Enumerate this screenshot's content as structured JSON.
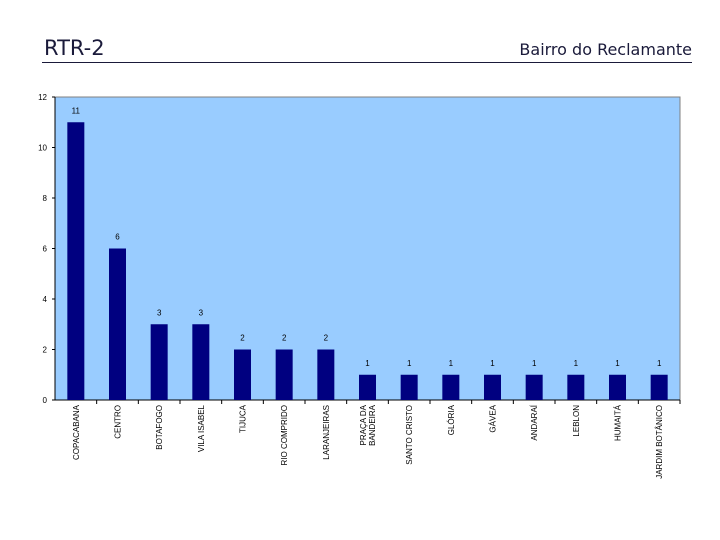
{
  "header": {
    "title": "RTR-2",
    "subtitle": "Bairro do Reclamante"
  },
  "chart_data": {
    "type": "bar",
    "categories": [
      "COPACABANA",
      "CENTRO",
      "BOTAFOGO",
      "VILA ISABEL",
      "TIJUCA",
      "RIO COMPRIDO",
      "LARANJEIRAS",
      "PRAÇA DA|BANDEIRA",
      "SANTO CRISTO",
      "GLÓRIA",
      "GÁVEA",
      "ANDARAÍ",
      "LEBLON",
      "HUMAITÁ",
      "JARDIM BOTÂNICO"
    ],
    "values": [
      11,
      6,
      3,
      3,
      2,
      2,
      2,
      1,
      1,
      1,
      1,
      1,
      1,
      1,
      1
    ],
    "yticks": [
      0,
      2,
      4,
      6,
      8,
      10,
      12
    ],
    "ylim": [
      0,
      12
    ],
    "grid": false,
    "legend": "none",
    "colors": {
      "plot_bg": "#99ccff",
      "bar": "#000080",
      "axis": "#808080"
    }
  }
}
